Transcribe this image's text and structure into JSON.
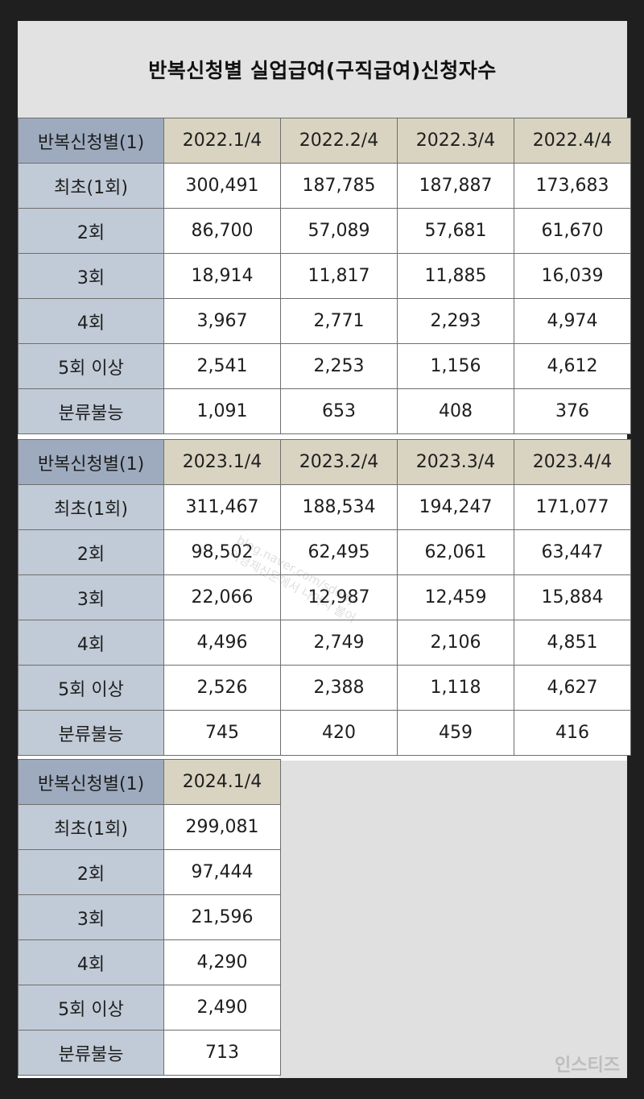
{
  "title": "반복신청별 실업급여(구직급여)신청자수",
  "row_labels": [
    "최초(1회)",
    "2회",
    "3회",
    "4회",
    "5회 이상",
    "분류불능"
  ],
  "corner_label": "반복신청별(1)",
  "blocks": [
    {
      "periods": [
        "2022.1/4",
        "2022.2/4",
        "2022.3/4",
        "2022.4/4"
      ],
      "rows": [
        [
          "300,491",
          "187,785",
          "187,887",
          "173,683"
        ],
        [
          "86,700",
          "57,089",
          "57,681",
          "61,670"
        ],
        [
          "18,914",
          "11,817",
          "11,885",
          "16,039"
        ],
        [
          "3,967",
          "2,771",
          "2,293",
          "4,974"
        ],
        [
          "2,541",
          "2,253",
          "1,156",
          "4,612"
        ],
        [
          "1,091",
          "653",
          "408",
          "376"
        ]
      ]
    },
    {
      "periods": [
        "2023.1/4",
        "2023.2/4",
        "2023.3/4",
        "2023.4/4"
      ],
      "rows": [
        [
          "311,467",
          "188,534",
          "194,247",
          "171,077"
        ],
        [
          "98,502",
          "62,495",
          "62,061",
          "63,447"
        ],
        [
          "22,066",
          "12,987",
          "12,459",
          "15,884"
        ],
        [
          "4,496",
          "2,749",
          "2,106",
          "4,851"
        ],
        [
          "2,526",
          "2,388",
          "1,118",
          "4,627"
        ],
        [
          "745",
          "420",
          "459",
          "416"
        ]
      ]
    },
    {
      "periods": [
        "2024.1/4"
      ],
      "rows": [
        [
          "299,081"
        ],
        [
          "97,444"
        ],
        [
          "21,596"
        ],
        [
          "4,290"
        ],
        [
          "2,490"
        ],
        [
          "713"
        ]
      ]
    }
  ],
  "watermark": {
    "line1": "blog.naver.com/sdedy",
    "line2": "이경제신문에서 나머지 볼어"
  },
  "corner_logo": "인스티즈"
}
